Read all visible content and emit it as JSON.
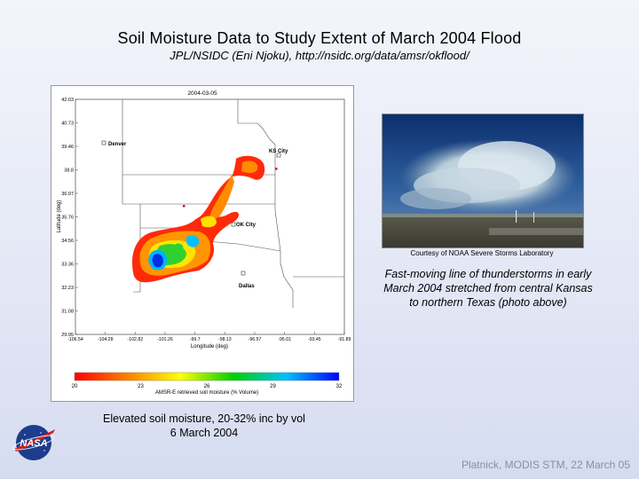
{
  "title": "Soil Moisture Data to Study Extent of March 2004 Flood",
  "subtitle": "JPL/NSIDC (Eni Njoku), http://nsidc.org/data/amsr/okflood/",
  "map": {
    "date": "2004-03-05",
    "ylabel": "Latitude (deg)",
    "xlabel": "Longitude (deg)",
    "yticks": [
      "42.03",
      "40.73",
      "39.46",
      "38.8",
      "36.97",
      "35.76",
      "34.56",
      "33.36",
      "32.23",
      "31.08",
      "29.95"
    ],
    "xticks": [
      "-106.54",
      "-104.28",
      "-102.82",
      "-101.26",
      "-99.7",
      "-98.13",
      "-96.57",
      "-95.01",
      "-93.45",
      "-91.89"
    ],
    "cities": [
      {
        "name": "Denver"
      },
      {
        "name": "KS City"
      },
      {
        "name": "OK City"
      },
      {
        "name": "Dallas"
      }
    ],
    "colorbar_ticks": [
      "20",
      "23",
      "26",
      "29",
      "32"
    ],
    "colorbar_label": "AMSR-E retrieved soil moisture (% Volume)",
    "colorbar_colors": [
      "#ff0000",
      "#ff8000",
      "#ffff00",
      "#00d000",
      "#00c0ff",
      "#0000ff"
    ]
  },
  "photo_credit": "Courtesy of NOAA Severe Storms Laboratory",
  "photo_caption": [
    "Fast-moving line of thunderstorms in early",
    "March 2004 stretched from central Kansas",
    "to northern Texas (photo above)"
  ],
  "bottom_caption": [
    "Elevated soil moisture, 20-32% inc by vol",
    "6 March 2004"
  ],
  "footer": "Platnick, MODIS STM, 22 March 05",
  "logo_text": "NASA"
}
